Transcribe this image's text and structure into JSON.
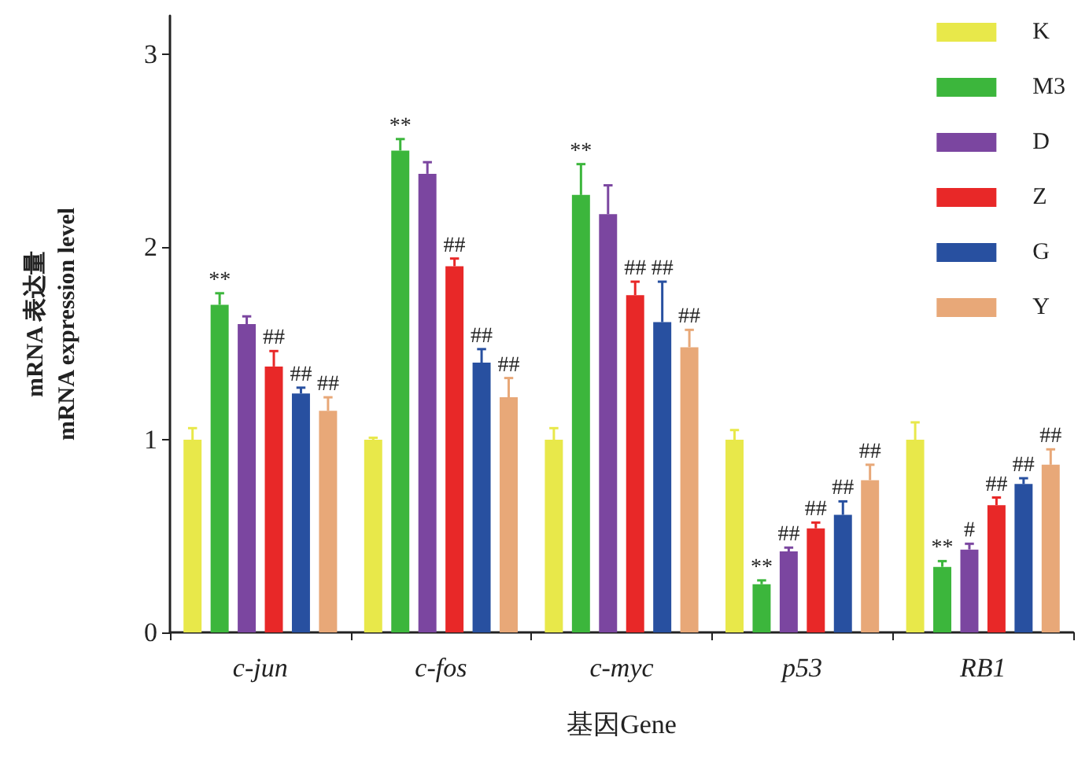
{
  "chart_data": {
    "type": "bar",
    "xlabel": "基因Gene",
    "ylabel": "mRNA 表达量\nmRNA expression level",
    "categories": [
      "c-jun",
      "c-fos",
      "c-myc",
      "p53",
      "RB1"
    ],
    "series": [
      {
        "name": "K",
        "color": "#e8e84a",
        "values": [
          1.0,
          1.0,
          1.0,
          1.0,
          1.0
        ],
        "errors": [
          0.06,
          0.01,
          0.06,
          0.05,
          0.09
        ]
      },
      {
        "name": "M3",
        "color": "#3cb63c",
        "values": [
          1.7,
          2.5,
          2.27,
          0.25,
          0.34
        ],
        "errors": [
          0.06,
          0.06,
          0.16,
          0.02,
          0.03
        ],
        "value_labels": [
          "**",
          "**",
          "**",
          "**",
          "**"
        ]
      },
      {
        "name": "D",
        "color": "#7b46a0",
        "values": [
          1.6,
          2.38,
          2.17,
          0.42,
          0.43
        ],
        "errors": [
          0.04,
          0.06,
          0.15,
          0.02,
          0.03
        ],
        "value_labels": [
          null,
          null,
          null,
          "##",
          "#"
        ]
      },
      {
        "name": "Z",
        "color": "#e82828",
        "values": [
          1.38,
          1.9,
          1.75,
          0.54,
          0.66
        ],
        "errors": [
          0.08,
          0.04,
          0.07,
          0.03,
          0.04
        ],
        "value_labels": [
          "##",
          "##",
          "##",
          "##",
          "##"
        ]
      },
      {
        "name": "G",
        "color": "#2850a0",
        "values": [
          1.24,
          1.4,
          1.61,
          0.61,
          0.77
        ],
        "errors": [
          0.03,
          0.07,
          0.21,
          0.07,
          0.03
        ],
        "value_labels": [
          "##",
          "##",
          "##",
          "##",
          "##"
        ]
      },
      {
        "name": "Y",
        "color": "#e8a878",
        "values": [
          1.15,
          1.22,
          1.48,
          0.79,
          0.87
        ],
        "errors": [
          0.07,
          0.1,
          0.09,
          0.08,
          0.08
        ],
        "value_labels": [
          "##",
          "##",
          "##",
          "##",
          "##"
        ]
      }
    ],
    "ylim": [
      0,
      3.2
    ],
    "yticks": [
      0,
      1,
      2,
      3
    ],
    "grid": false,
    "legend": "top right"
  }
}
